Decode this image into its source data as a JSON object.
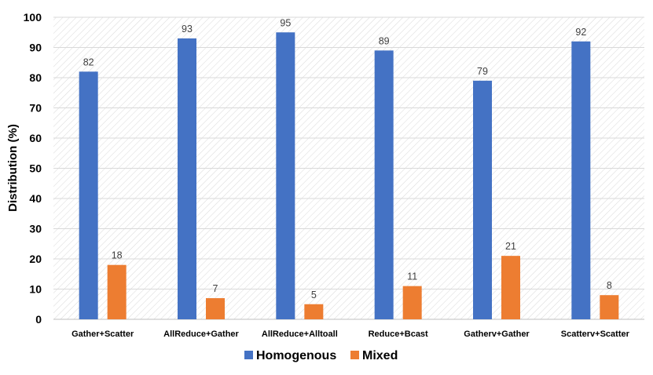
{
  "chart_data": {
    "type": "bar",
    "title": "",
    "xlabel": "",
    "ylabel": "Distribution (%)",
    "ylim": [
      0,
      100
    ],
    "yticks": [
      0,
      10,
      20,
      30,
      40,
      50,
      60,
      70,
      80,
      90,
      100
    ],
    "categories": [
      "Gather+Scatter",
      "AllReduce+Gather",
      "AllReduce+Alltoall",
      "Reduce+Bcast",
      "Gatherv+Gather",
      "Scatterv+Scatter"
    ],
    "series": [
      {
        "name": "Homogenous",
        "color": "#4472C4",
        "values": [
          82,
          93,
          95,
          89,
          79,
          92
        ]
      },
      {
        "name": "Mixed",
        "color": "#ED7D31",
        "values": [
          18,
          7,
          5,
          11,
          21,
          8
        ]
      }
    ],
    "grid": true,
    "legend_position": "bottom",
    "data_labels": true
  }
}
